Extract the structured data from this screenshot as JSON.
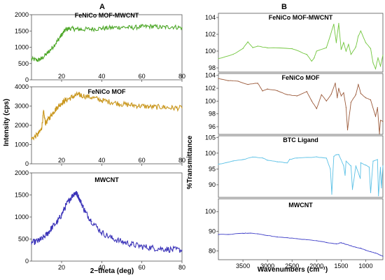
{
  "panels": [
    {
      "letter": "A"
    },
    {
      "letter": "B"
    }
  ],
  "xrd": {
    "ylabel": "Intensity (cps)",
    "xlabel": "2−theta (deg)"
  },
  "ftir": {
    "ylabel": "%Transmittance",
    "xlabel": "Wavenumbers (cm⁻¹)"
  },
  "chart_data": [
    {
      "type": "line",
      "panel": "A",
      "title": "FeNiCo MOF-MWCNT",
      "color": "#4fa82a",
      "xlim": [
        5,
        80
      ],
      "ylim": [
        0,
        2000
      ],
      "xticks": [
        20,
        40,
        60,
        80
      ],
      "yticks": [
        0,
        500,
        1000,
        1500,
        2000
      ],
      "x": [
        5,
        8,
        10,
        13,
        15,
        18,
        20,
        22,
        24,
        27,
        30,
        35,
        40,
        45,
        50,
        55,
        60,
        65,
        70,
        75,
        80
      ],
      "y": [
        640,
        600,
        650,
        820,
        960,
        1200,
        1380,
        1540,
        1580,
        1560,
        1550,
        1560,
        1580,
        1600,
        1620,
        1600,
        1630,
        1640,
        1610,
        1630,
        1600
      ]
    },
    {
      "type": "line",
      "panel": "A",
      "title": "FeNiCo MOF",
      "color": "#c9961c",
      "xlim": [
        5,
        80
      ],
      "ylim": [
        0,
        4000
      ],
      "xticks": [
        20,
        40,
        60,
        80
      ],
      "yticks": [
        0,
        1000,
        2000,
        3000,
        4000
      ],
      "x": [
        5,
        8,
        10,
        11,
        12,
        14,
        16,
        18,
        20,
        22,
        25,
        28,
        30,
        35,
        40,
        45,
        50,
        55,
        60,
        65,
        70,
        75,
        80
      ],
      "y": [
        1300,
        1500,
        1800,
        2700,
        2100,
        2400,
        2700,
        2950,
        3150,
        3300,
        3450,
        3600,
        3550,
        3450,
        3300,
        3200,
        3100,
        3050,
        3000,
        2950,
        2950,
        2900,
        2900
      ]
    },
    {
      "type": "line",
      "panel": "A",
      "title": "MWCNT",
      "color": "#3a32b8",
      "xlim": [
        5,
        80
      ],
      "ylim": [
        0,
        2000
      ],
      "xticks": [
        20,
        40,
        60,
        80
      ],
      "yticks": [
        0,
        500,
        1000,
        1500,
        2000
      ],
      "x": [
        5,
        8,
        10,
        13,
        15,
        18,
        20,
        22,
        24,
        26,
        27,
        28,
        30,
        32,
        35,
        40,
        45,
        50,
        55,
        60,
        65,
        70,
        75,
        80
      ],
      "y": [
        420,
        450,
        500,
        620,
        750,
        900,
        1050,
        1250,
        1400,
        1520,
        1550,
        1500,
        1300,
        1100,
        900,
        650,
        520,
        440,
        380,
        330,
        300,
        280,
        260,
        250
      ]
    },
    {
      "type": "line",
      "panel": "B",
      "title": "FeNiCo MOF-MWCNT",
      "color": "#72c63e",
      "xlim": [
        4000,
        650
      ],
      "ylim": [
        97.5,
        104.5
      ],
      "xticks": [
        3500,
        3000,
        2500,
        2000,
        1500,
        1000
      ],
      "yticks": [
        98,
        100,
        102,
        104
      ],
      "x": [
        4000,
        3700,
        3500,
        3400,
        3300,
        3200,
        3000,
        2500,
        2200,
        2100,
        2050,
        2000,
        1800,
        1650,
        1600,
        1550,
        1500,
        1450,
        1400,
        1350,
        1300,
        1200,
        1150,
        1100,
        1000,
        900,
        850,
        800,
        750,
        700,
        650
      ],
      "y": [
        99.1,
        99.6,
        100.3,
        101.1,
        100.4,
        100.6,
        100.4,
        100.3,
        99.6,
        98.8,
        99.2,
        100.0,
        100.4,
        103.2,
        101.0,
        103.3,
        100.2,
        101.0,
        100.0,
        100.8,
        99.6,
        100.5,
        101.8,
        102.4,
        101.0,
        100.3,
        98.6,
        97.9,
        99.2,
        98.2,
        99.5
      ]
    },
    {
      "type": "line",
      "panel": "B",
      "title": "FeNiCo MOF",
      "color": "#9b5a3a",
      "xlim": [
        4000,
        650
      ],
      "ylim": [
        94.8,
        104.3
      ],
      "xticks": [
        3500,
        3000,
        2500,
        2000,
        1500,
        1000
      ],
      "yticks": [
        96,
        98,
        100,
        102,
        104
      ],
      "x": [
        4000,
        3800,
        3600,
        3400,
        3200,
        3100,
        3000,
        2800,
        2600,
        2400,
        2200,
        2100,
        2000,
        1900,
        1800,
        1700,
        1620,
        1580,
        1550,
        1500,
        1450,
        1400,
        1370,
        1300,
        1200,
        1150,
        1100,
        1000,
        900,
        800,
        760,
        720,
        700,
        650
      ],
      "y": [
        103.5,
        103.2,
        103.1,
        102.6,
        102.8,
        101.6,
        101.9,
        101.6,
        101.0,
        100.8,
        101.5,
        100.0,
        98.8,
        101.0,
        100.0,
        101.1,
        102.8,
        100.5,
        102.0,
        100.8,
        101.3,
        99.0,
        95.5,
        99.8,
        101.0,
        102.6,
        101.2,
        100.5,
        100.2,
        97.6,
        99.0,
        94.9,
        97.0,
        96.8
      ]
    },
    {
      "type": "line",
      "panel": "B",
      "title": "BTC Ligand",
      "color": "#5bc1e6",
      "xlim": [
        4000,
        650
      ],
      "ylim": [
        86,
        105.5
      ],
      "xticks": [
        3500,
        3000,
        2500,
        2000,
        1500,
        1000
      ],
      "yticks": [
        90,
        95,
        100,
        105
      ],
      "x": [
        4000,
        3700,
        3500,
        3300,
        3100,
        3000,
        2800,
        2600,
        2550,
        2400,
        2000,
        1800,
        1720,
        1690,
        1650,
        1600,
        1550,
        1450,
        1420,
        1400,
        1300,
        1270,
        1200,
        1110,
        1100,
        1000,
        930,
        900,
        850,
        760,
        740,
        700,
        680,
        650
      ],
      "y": [
        96.5,
        97.5,
        98.0,
        98.8,
        98.5,
        97.8,
        97.3,
        96.9,
        98.0,
        98.5,
        98.8,
        98.4,
        95.0,
        87.0,
        99.0,
        99.5,
        99.6,
        96.0,
        93.0,
        97.5,
        96.0,
        88.5,
        96.0,
        92.0,
        97.0,
        96.2,
        95.6,
        87.5,
        97.5,
        98.0,
        86.5,
        95.5,
        89.0,
        96.0
      ]
    },
    {
      "type": "line",
      "panel": "B",
      "title": "MWCNT",
      "color": "#3f3fc8",
      "xlim": [
        4000,
        650
      ],
      "ylim": [
        75.5,
        106.5
      ],
      "xticks": [
        3500,
        3000,
        2500,
        2000,
        1500,
        1000
      ],
      "yticks": [
        80,
        90,
        100
      ],
      "x": [
        4000,
        3800,
        3500,
        3400,
        3200,
        3000,
        2800,
        2600,
        2400,
        2200,
        2000,
        1800,
        1600,
        1500,
        1400,
        1300,
        1200,
        1100,
        1000,
        900,
        800,
        700,
        650
      ],
      "y": [
        88.3,
        88.4,
        88.9,
        89.0,
        88.6,
        87.8,
        87.1,
        86.7,
        86.2,
        85.7,
        85.2,
        84.3,
        83.5,
        84.2,
        83.3,
        82.6,
        81.8,
        81.3,
        80.3,
        79.6,
        78.9,
        77.8,
        77.2
      ]
    }
  ]
}
